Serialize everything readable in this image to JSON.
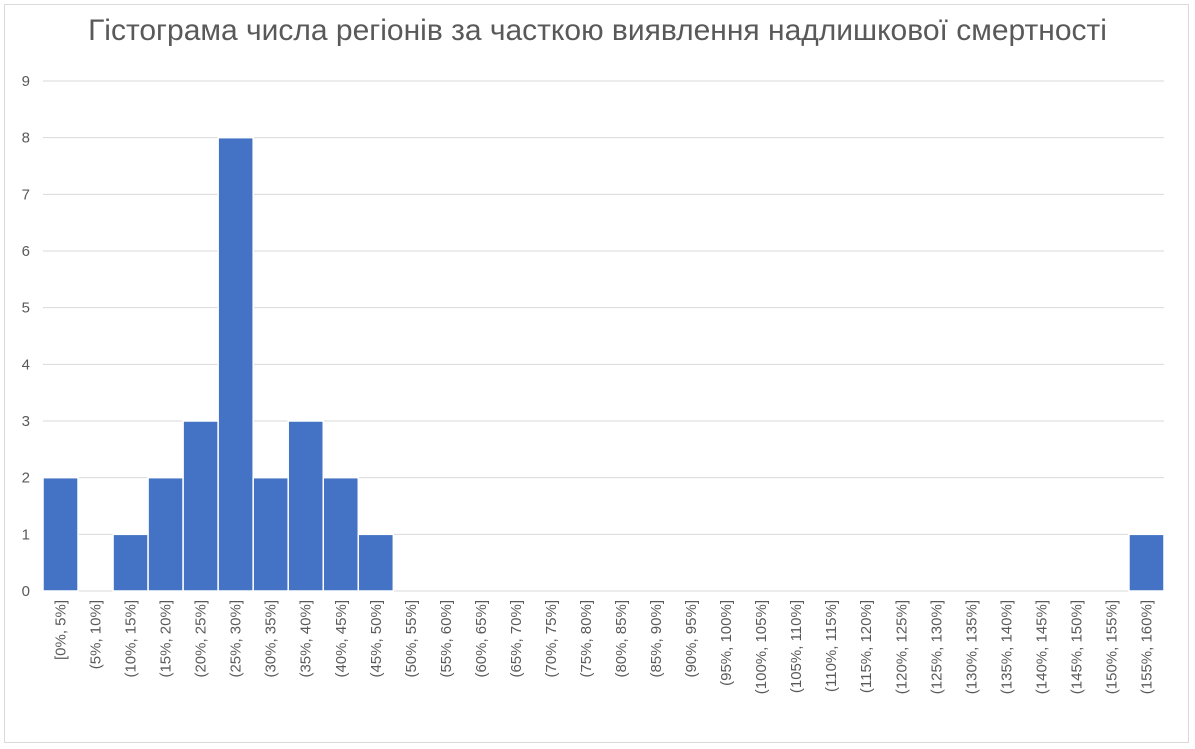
{
  "chart_data": {
    "type": "bar",
    "title": "Гістограма числа регіонів за часткою виявлення надлишкової смертності",
    "xlabel": "",
    "ylabel": "",
    "ylim": [
      0,
      9
    ],
    "yticks": [
      0,
      1,
      2,
      3,
      4,
      5,
      6,
      7,
      8,
      9
    ],
    "grid": true,
    "legend": "none",
    "bar_color": "#4472c4",
    "categories": [
      "[0%, 5%]",
      "(5%, 10%]",
      "(10%, 15%]",
      "(15%, 20%]",
      "(20%, 25%]",
      "(25%, 30%]",
      "(30%, 35%]",
      "(35%, 40%]",
      "(40%, 45%]",
      "(45%, 50%]",
      "(50%, 55%]",
      "(55%, 60%]",
      "(60%, 65%]",
      "(65%, 70%]",
      "(70%, 75%]",
      "(75%, 80%]",
      "(80%, 85%]",
      "(85%, 90%]",
      "(90%, 95%]",
      "(95%, 100%]",
      "(100%, 105%]",
      "(105%, 110%]",
      "(110%, 115%]",
      "(115%, 120%]",
      "(120%, 125%]",
      "(125%, 130%]",
      "(130%, 135%]",
      "(135%, 140%]",
      "(140%, 145%]",
      "(145%, 150%]",
      "(150%, 155%]",
      "(155%, 160%]"
    ],
    "values": [
      2,
      0,
      1,
      2,
      3,
      8,
      2,
      3,
      2,
      1,
      0,
      0,
      0,
      0,
      0,
      0,
      0,
      0,
      0,
      0,
      0,
      0,
      0,
      0,
      0,
      0,
      0,
      0,
      0,
      0,
      0,
      1
    ]
  }
}
